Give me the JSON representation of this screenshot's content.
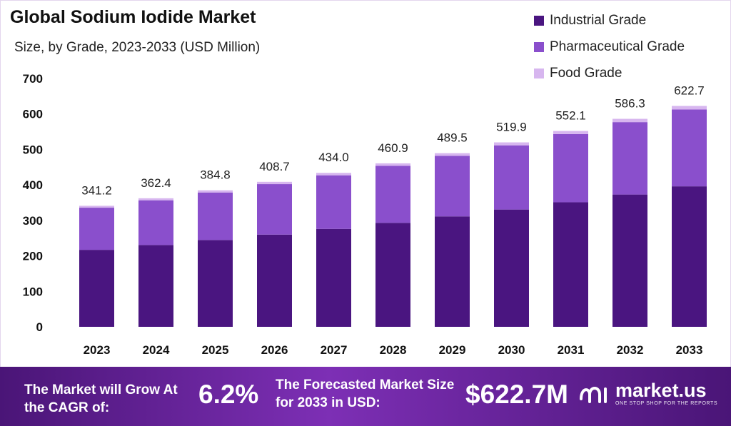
{
  "chart_data": {
    "type": "bar",
    "stacked": true,
    "title": "Global Sodium Iodide Market",
    "subtitle": "Size, by Grade, 2023-2033 (USD Million)",
    "categories": [
      "2023",
      "2024",
      "2025",
      "2026",
      "2027",
      "2028",
      "2029",
      "2030",
      "2031",
      "2032",
      "2033"
    ],
    "series": [
      {
        "name": "Industrial Grade",
        "color": "#4a1580",
        "values": [
          217.0,
          230.5,
          244.7,
          259.9,
          276.0,
          293.1,
          311.3,
          330.6,
          351.1,
          372.9,
          396.0
        ]
      },
      {
        "name": "Pharmaceutical Grade",
        "color": "#8a4fcc",
        "values": [
          118.8,
          126.2,
          134.0,
          142.3,
          151.1,
          160.5,
          170.5,
          181.0,
          192.2,
          204.1,
          216.8
        ]
      },
      {
        "name": "Food Grade",
        "color": "#d7b6ef",
        "values": [
          5.4,
          5.7,
          6.1,
          6.5,
          6.9,
          7.3,
          7.7,
          8.3,
          8.8,
          9.3,
          9.9
        ]
      }
    ],
    "totals": [
      "341.2",
      "362.4",
      "384.8",
      "408.7",
      "434.0",
      "460.9",
      "489.5",
      "519.9",
      "552.1",
      "586.3",
      "622.7"
    ],
    "yticks": [
      0,
      100,
      200,
      300,
      400,
      500,
      600,
      700
    ],
    "ylim": [
      0,
      700
    ],
    "xlabel": "",
    "ylabel": "",
    "grid": false,
    "legend": "top-right"
  },
  "footer": {
    "cagr_label": "The Market will Grow At the CAGR of:",
    "cagr_value": "6.2%",
    "forecast_label": "The Forecasted Market Size for 2033 in USD:",
    "forecast_value": "$622.7M",
    "brand_name": "market.us",
    "brand_tagline": "ONE STOP SHOP FOR THE REPORTS"
  }
}
